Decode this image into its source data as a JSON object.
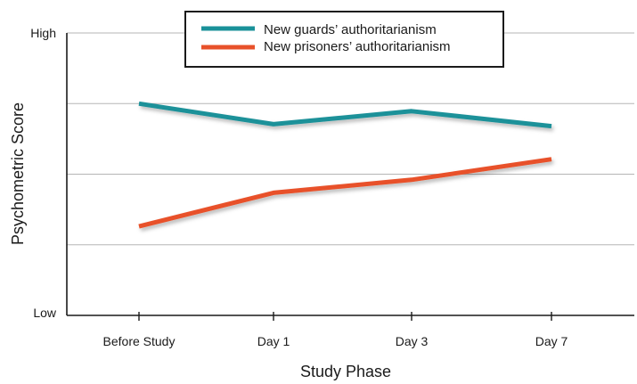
{
  "chart_data": {
    "type": "line",
    "xlabel": "Study Phase",
    "ylabel": "Psychometric Score",
    "categories": [
      "Before Study",
      "Day 1",
      "Day 3",
      "Day 7"
    ],
    "y_tick_labels": [
      "Low",
      "High"
    ],
    "ylim": [
      0,
      100
    ],
    "grid": true,
    "legend_position": "top-center",
    "series": [
      {
        "name": "New guards’ authoritarianism",
        "color": "#1a9199",
        "values": [
          75,
          67.7,
          72.3,
          67
        ]
      },
      {
        "name": "New prisoners’ authoritarianism",
        "color": "#e8512a",
        "values": [
          31.5,
          43.4,
          48,
          55.3
        ]
      }
    ]
  }
}
